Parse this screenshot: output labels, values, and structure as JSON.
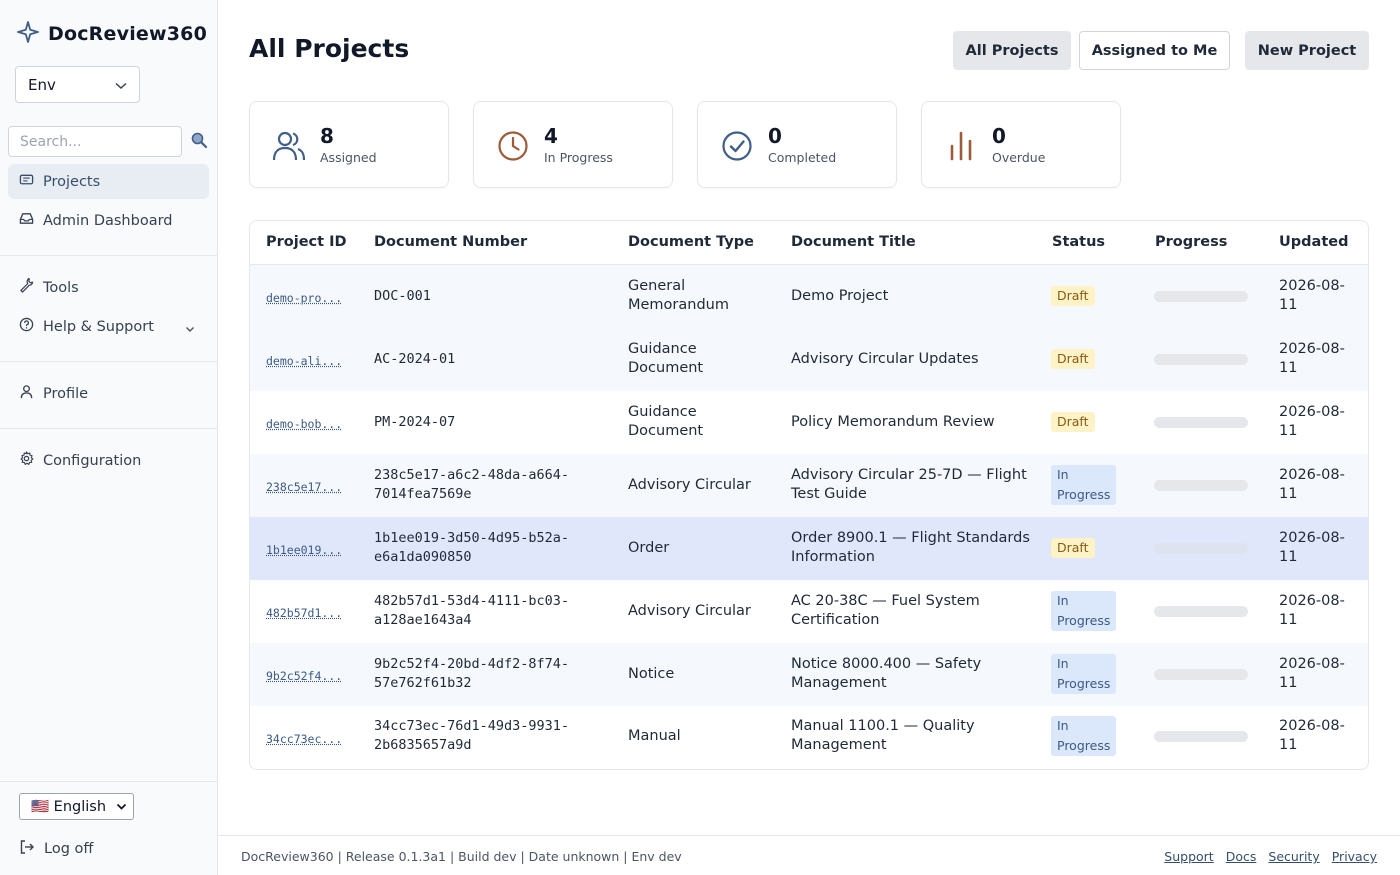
{
  "app": {
    "name": "DocReview360"
  },
  "sidebar": {
    "env_value": "Env",
    "search_placeholder": "Search...",
    "items": {
      "projects": "Projects",
      "admin": "Admin Dashboard",
      "tools": "Tools",
      "help": "Help & Support",
      "profile": "Profile",
      "config": "Configuration"
    },
    "language": "🇺🇸 English",
    "logoff": "Log off"
  },
  "header": {
    "title": "All Projects",
    "buttons": {
      "all": "All Projects",
      "assigned": "Assigned to Me",
      "new": "New Project"
    }
  },
  "stats": [
    {
      "value": "8",
      "label": "Assigned",
      "icon": "users-icon",
      "color": "#3f5f86"
    },
    {
      "value": "4",
      "label": "In Progress",
      "icon": "clock-icon",
      "color": "#9c5b3b"
    },
    {
      "value": "0",
      "label": "Completed",
      "icon": "check-circle-icon",
      "color": "#3f5f86"
    },
    {
      "value": "0",
      "label": "Overdue",
      "icon": "bar-chart-icon",
      "color": "#9c5b3b"
    }
  ],
  "table": {
    "columns": [
      "Project ID",
      "Document Number",
      "Document Type",
      "Document Title",
      "Status",
      "Progress",
      "Updated"
    ],
    "rows": [
      {
        "id": "demo-pro...",
        "num1": "DOC-001",
        "num2": "",
        "type1": "General",
        "type2": "Memorandum",
        "title1": "Demo Project",
        "title2": "",
        "status": "Draft",
        "progress": 0,
        "updated1": "2026-08-",
        "updated2": "11"
      },
      {
        "id": "demo-ali...",
        "num1": "AC-2024-01",
        "num2": "",
        "type1": "Guidance",
        "type2": "Document",
        "title1": "Advisory Circular Updates",
        "title2": "",
        "status": "Draft",
        "progress": 0,
        "updated1": "2026-08-",
        "updated2": "11"
      },
      {
        "id": "demo-bob...",
        "num1": "PM-2024-07",
        "num2": "",
        "type1": "Guidance",
        "type2": "Document",
        "title1": "Policy Memorandum Review",
        "title2": "",
        "status": "Draft",
        "progress": 0,
        "updated1": "2026-08-",
        "updated2": "11"
      },
      {
        "id": "238c5e17...",
        "num1": "238c5e17-a6c2-48da-a664-",
        "num2": "7014fea7569e",
        "type1": "Advisory Circular",
        "type2": "",
        "title1": "Advisory Circular 25-7D — Flight",
        "title2": "Test Guide",
        "status1": "In",
        "status2": "Progress",
        "status": "In Progress",
        "progress": 0,
        "updated1": "2026-08-",
        "updated2": "11"
      },
      {
        "id": "1b1ee019...",
        "num1": "1b1ee019-3d50-4d95-b52a-",
        "num2": "e6a1da090850",
        "type1": "Order",
        "type2": "",
        "title1": "Order 8900.1 — Flight Standards",
        "title2": "Information",
        "status": "Draft",
        "progress": 0,
        "updated1": "2026-08-",
        "updated2": "11"
      },
      {
        "id": "482b57d1...",
        "num1": "482b57d1-53d4-4111-bc03-",
        "num2": "a128ae1643a4",
        "type1": "Advisory Circular",
        "type2": "",
        "title1": "AC 20-38C — Fuel System",
        "title2": "Certification",
        "status1": "In",
        "status2": "Progress",
        "status": "In Progress",
        "progress": 0,
        "updated1": "2026-08-",
        "updated2": "11"
      },
      {
        "id": "9b2c52f4...",
        "num1": "9b2c52f4-20bd-4df2-8f74-",
        "num2": "57e762f61b32",
        "type1": "Notice",
        "type2": "",
        "title1": "Notice 8000.400 — Safety",
        "title2": "Management",
        "status1": "In",
        "status2": "Progress",
        "status": "In Progress",
        "progress": 0,
        "updated1": "2026-08-",
        "updated2": "11"
      },
      {
        "id": "34cc73ec...",
        "num1": "34cc73ec-76d1-49d3-9931-",
        "num2": "2b6835657a9d",
        "type1": "Manual",
        "type2": "",
        "title1": "Manual 1100.1 — Quality",
        "title2": "Management",
        "status1": "In",
        "status2": "Progress",
        "status": "In Progress",
        "progress": 0,
        "updated1": "2026-08-",
        "updated2": "11"
      }
    ]
  },
  "footer": {
    "text": "DocReview360 | Release 0.1.3a1 | Build dev | Date unknown | Env dev",
    "links": {
      "support": "Support",
      "docs": "Docs",
      "security": "Security",
      "privacy": "Privacy"
    }
  }
}
